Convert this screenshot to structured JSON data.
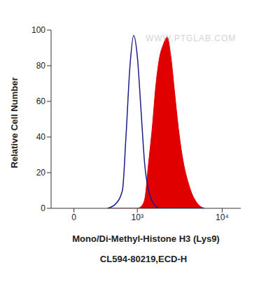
{
  "chart_data": {
    "type": "line",
    "x_label": "Mono/Di-Methyl-Histone H3 (Lys9)",
    "subtitle": "CL594-80219,ECD-H",
    "y_label": "Relative Cell Number",
    "annotations": [
      "WWW.PTGLAB.COM"
    ],
    "log": "x",
    "x": [
      340,
      460,
      610,
      690,
      790,
      890,
      1000,
      1120,
      1250,
      1400,
      1560,
      1740,
      1930,
      2140,
      2380,
      2630,
      2910,
      3220,
      3550,
      4320,
      5250,
      6360
    ],
    "xlim": [
      -200,
      16000
    ],
    "xticks": [
      0,
      {
        "value": 1000,
        "label": "10³"
      },
      {
        "value": 10000,
        "label": "10⁴"
      }
    ],
    "ylim": [
      0,
      100
    ],
    "yticks": [
      0,
      20,
      40,
      60,
      80,
      100
    ],
    "series": [
      {
        "type": "line",
        "color": "#1c1c8a",
        "values": [
          0,
          2,
          10,
          40,
          80,
          97,
          85,
          55,
          25,
          10,
          4,
          1,
          0,
          0,
          0,
          0,
          0,
          0,
          0,
          0,
          0,
          0
        ]
      },
      {
        "type": "area",
        "color": "#e00000",
        "values": [
          0,
          0,
          0,
          0,
          0,
          0,
          0,
          1,
          5,
          25,
          45,
          70,
          85,
          92,
          96,
          85,
          65,
          45,
          30,
          12,
          3,
          0
        ]
      }
    ]
  }
}
